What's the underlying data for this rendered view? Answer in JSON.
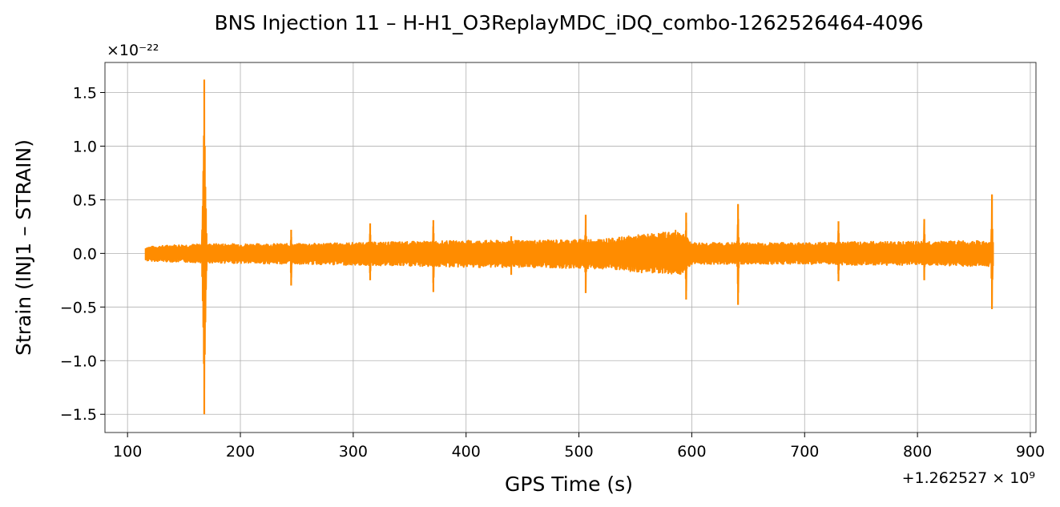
{
  "chart_data": {
    "type": "line",
    "title": "BNS Injection 11 – H-H1_O3ReplayMDC_iDQ_combo-1262526464-4096",
    "xlabel": "GPS Time (s)",
    "ylabel": "Strain (INJ1 – STRAIN)",
    "x_offset_label": "+1.262527 × 10⁹",
    "y_multiplier_label": "×10⁻²²",
    "xlim": [
      80,
      905
    ],
    "ylim": [
      -1.67,
      1.78
    ],
    "x_ticks": [
      100,
      200,
      300,
      400,
      500,
      600,
      700,
      800,
      900
    ],
    "y_ticks": [
      -1.5,
      -1.0,
      -0.5,
      0.0,
      0.5,
      1.0,
      1.5
    ],
    "x_tick_labels": [
      "100",
      "200",
      "300",
      "400",
      "500",
      "600",
      "700",
      "800",
      "900"
    ],
    "y_tick_labels": [
      "−1.5",
      "−1.0",
      "−0.5",
      "0.0",
      "0.5",
      "1.0",
      "1.5"
    ],
    "grid": true,
    "series": [
      {
        "color": "#ff8c00",
        "x_range": [
          116,
          867
        ],
        "noise_envelope": {
          "x": [
            116,
            140,
            180,
            250,
            300,
            350,
            400,
            450,
            500,
            530,
            550,
            570,
            590,
            600,
            650,
            700,
            750,
            800,
            850,
            867
          ],
          "upper": [
            0.06,
            0.08,
            0.09,
            0.09,
            0.1,
            0.11,
            0.12,
            0.12,
            0.13,
            0.14,
            0.17,
            0.19,
            0.22,
            0.1,
            0.1,
            0.1,
            0.11,
            0.11,
            0.12,
            0.1
          ],
          "lower": [
            -0.07,
            -0.08,
            -0.09,
            -0.1,
            -0.11,
            -0.12,
            -0.13,
            -0.13,
            -0.14,
            -0.15,
            -0.18,
            -0.18,
            -0.2,
            -0.1,
            -0.1,
            -0.1,
            -0.11,
            -0.11,
            -0.12,
            -0.12
          ]
        },
        "spikes": [
          {
            "x": 168,
            "max": 1.62,
            "min": -1.5
          },
          {
            "x": 245,
            "max": 0.22,
            "min": -0.3
          },
          {
            "x": 315,
            "max": 0.28,
            "min": -0.25
          },
          {
            "x": 371,
            "max": 0.31,
            "min": -0.36
          },
          {
            "x": 440,
            "max": 0.16,
            "min": -0.2
          },
          {
            "x": 506,
            "max": 0.36,
            "min": -0.37
          },
          {
            "x": 595,
            "max": 0.38,
            "min": -0.43
          },
          {
            "x": 641,
            "max": 0.46,
            "min": -0.48
          },
          {
            "x": 730,
            "max": 0.3,
            "min": -0.26
          },
          {
            "x": 806,
            "max": 0.32,
            "min": -0.25
          },
          {
            "x": 866,
            "max": 0.55,
            "min": -0.52
          }
        ]
      }
    ]
  }
}
